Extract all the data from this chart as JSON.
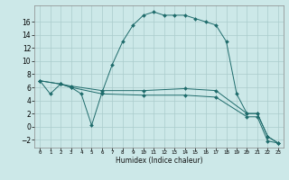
{
  "xlabel": "Humidex (Indice chaleur)",
  "bg_color": "#cce8e8",
  "line_color": "#1e6b6b",
  "grid_color": "#aacccc",
  "xlim": [
    -0.5,
    23.5
  ],
  "ylim": [
    -3.2,
    18.5
  ],
  "xticks": [
    0,
    1,
    2,
    3,
    4,
    5,
    6,
    7,
    8,
    9,
    10,
    11,
    12,
    13,
    14,
    15,
    16,
    17,
    18,
    19,
    20,
    21,
    22,
    23
  ],
  "yticks": [
    -2,
    0,
    2,
    4,
    6,
    8,
    10,
    12,
    14,
    16
  ],
  "series": [
    {
      "x": [
        0,
        1,
        2,
        3,
        4,
        5,
        6,
        7,
        8,
        9,
        10,
        11,
        12,
        13,
        14,
        15,
        16,
        17,
        18,
        19,
        20,
        21,
        22,
        23
      ],
      "y": [
        7,
        5,
        6.5,
        6,
        5,
        0.2,
        5.2,
        9.5,
        13,
        15.5,
        17,
        17.5,
        17,
        17,
        17,
        16.5,
        16,
        15.5,
        13,
        5,
        2,
        2,
        -1.5,
        -2.5
      ]
    },
    {
      "x": [
        0,
        2,
        3,
        6,
        10,
        14,
        17,
        20,
        21,
        22,
        23
      ],
      "y": [
        7,
        6.5,
        6.2,
        5.5,
        5.5,
        5.8,
        5.5,
        2.0,
        2.0,
        -1.5,
        -2.5
      ]
    },
    {
      "x": [
        0,
        2,
        3,
        6,
        10,
        14,
        17,
        20,
        21,
        22,
        23
      ],
      "y": [
        7,
        6.5,
        6.0,
        5.0,
        4.8,
        4.8,
        4.5,
        1.5,
        1.5,
        -2.2,
        -2.5
      ]
    }
  ]
}
